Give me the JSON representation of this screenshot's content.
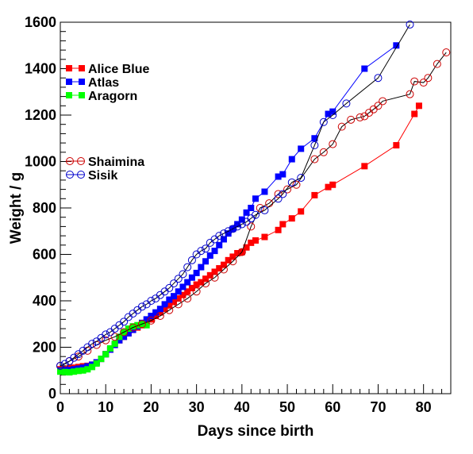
{
  "chart_data": {
    "type": "scatter",
    "xlabel": "Days since birth",
    "ylabel": "Weight / g",
    "xlim": [
      0,
      86
    ],
    "ylim": [
      0,
      1600
    ],
    "xticks": [
      0,
      10,
      20,
      30,
      40,
      50,
      60,
      70,
      80
    ],
    "yticks": [
      0,
      200,
      400,
      600,
      800,
      1000,
      1200,
      1400,
      1600
    ],
    "grid": false,
    "legend_placement": "upper-left",
    "series": [
      {
        "name": "Alice Blue",
        "color": "#ff0000",
        "marker": "square",
        "filled": true,
        "x": [
          0,
          1,
          2,
          3,
          4,
          5,
          6,
          7,
          8,
          9,
          10,
          11,
          12,
          13,
          14,
          15,
          16,
          17,
          18,
          19,
          20,
          21,
          22,
          23,
          24,
          25,
          26,
          27,
          28,
          29,
          30,
          31,
          32,
          33,
          34,
          35,
          36,
          37,
          38,
          39,
          40,
          41,
          42,
          43,
          45,
          48,
          49,
          51,
          53,
          56,
          59,
          60,
          67,
          74,
          78,
          79
        ],
        "y": [
          105,
          105,
          110,
          112,
          115,
          118,
          120,
          125,
          135,
          150,
          170,
          190,
          210,
          230,
          245,
          260,
          275,
          285,
          295,
          305,
          320,
          335,
          350,
          365,
          380,
          395,
          410,
          425,
          440,
          455,
          470,
          480,
          495,
          510,
          525,
          540,
          555,
          575,
          590,
          605,
          610,
          630,
          650,
          660,
          675,
          705,
          730,
          755,
          785,
          855,
          890,
          900,
          980,
          1070,
          1205,
          1240
        ]
      },
      {
        "name": "Atlas",
        "color": "#0000ff",
        "marker": "square",
        "filled": true,
        "x": [
          0,
          1,
          2,
          3,
          4,
          5,
          6,
          7,
          8,
          9,
          10,
          11,
          12,
          13,
          14,
          15,
          16,
          17,
          18,
          19,
          20,
          21,
          22,
          23,
          24,
          25,
          26,
          27,
          28,
          29,
          30,
          31,
          32,
          33,
          34,
          35,
          36,
          37,
          38,
          39,
          40,
          41,
          42,
          43,
          45,
          48,
          49,
          51,
          53,
          56,
          59,
          60,
          67,
          74
        ],
        "y": [
          100,
          100,
          102,
          105,
          108,
          112,
          118,
          125,
          135,
          150,
          170,
          190,
          210,
          230,
          245,
          260,
          275,
          290,
          305,
          320,
          335,
          350,
          365,
          385,
          405,
          420,
          440,
          460,
          480,
          500,
          520,
          545,
          570,
          595,
          615,
          640,
          665,
          690,
          710,
          730,
          750,
          780,
          800,
          840,
          870,
          935,
          945,
          1010,
          1055,
          1100,
          1205,
          1215,
          1400,
          1500
        ]
      },
      {
        "name": "Aragorn",
        "color": "#00ff00",
        "marker": "square",
        "filled": true,
        "x": [
          0,
          1,
          2,
          3,
          4,
          5,
          6,
          7,
          8,
          9,
          10,
          11,
          12,
          13,
          14,
          15,
          16,
          17,
          18,
          19
        ],
        "y": [
          95,
          93,
          92,
          95,
          98,
          100,
          105,
          115,
          130,
          150,
          170,
          195,
          215,
          245,
          265,
          280,
          290,
          295,
          300,
          295
        ]
      },
      {
        "name": "Shaimina",
        "color": "#cc0000",
        "marker": "circle",
        "filled": false,
        "x": [
          0,
          2,
          4,
          6,
          8,
          10,
          12,
          14,
          16,
          18,
          20,
          22,
          24,
          26,
          28,
          30,
          32,
          34,
          36,
          38,
          40,
          42,
          44,
          46,
          48,
          50,
          52,
          56,
          58,
          60,
          62,
          64,
          66,
          67,
          68,
          69,
          70,
          71,
          77,
          78,
          80,
          81,
          83,
          85
        ],
        "y": [
          120,
          140,
          160,
          185,
          210,
          230,
          245,
          265,
          285,
          300,
          315,
          335,
          360,
          385,
          410,
          440,
          475,
          500,
          535,
          570,
          610,
          720,
          800,
          820,
          860,
          880,
          900,
          1010,
          1040,
          1075,
          1150,
          1180,
          1190,
          1195,
          1210,
          1225,
          1240,
          1260,
          1290,
          1345,
          1340,
          1360,
          1420,
          1470
        ]
      },
      {
        "name": "Sisik",
        "color": "#0000cc",
        "marker": "circle",
        "filled": false,
        "x": [
          0,
          1,
          2,
          3,
          4,
          5,
          6,
          7,
          8,
          9,
          10,
          11,
          12,
          13,
          14,
          15,
          16,
          17,
          18,
          19,
          20,
          21,
          22,
          23,
          24,
          25,
          26,
          27,
          28,
          29,
          30,
          31,
          32,
          33,
          34,
          35,
          36,
          37,
          38,
          39,
          40,
          41,
          42,
          43,
          45,
          48,
          49,
          51,
          53,
          56,
          58,
          60,
          63,
          70,
          77
        ],
        "y": [
          120,
          128,
          140,
          155,
          170,
          185,
          200,
          215,
          225,
          240,
          255,
          265,
          280,
          295,
          310,
          330,
          345,
          360,
          375,
          385,
          400,
          410,
          425,
          440,
          455,
          475,
          495,
          515,
          545,
          575,
          600,
          615,
          625,
          650,
          665,
          680,
          690,
          700,
          710,
          720,
          730,
          740,
          755,
          770,
          790,
          840,
          860,
          910,
          930,
          1070,
          1170,
          1200,
          1250,
          1360,
          1590
        ]
      }
    ],
    "legend": {
      "group1": [
        "Alice Blue",
        "Atlas",
        "Aragorn"
      ],
      "group2": [
        "Shaimina",
        "Sisik"
      ]
    }
  }
}
